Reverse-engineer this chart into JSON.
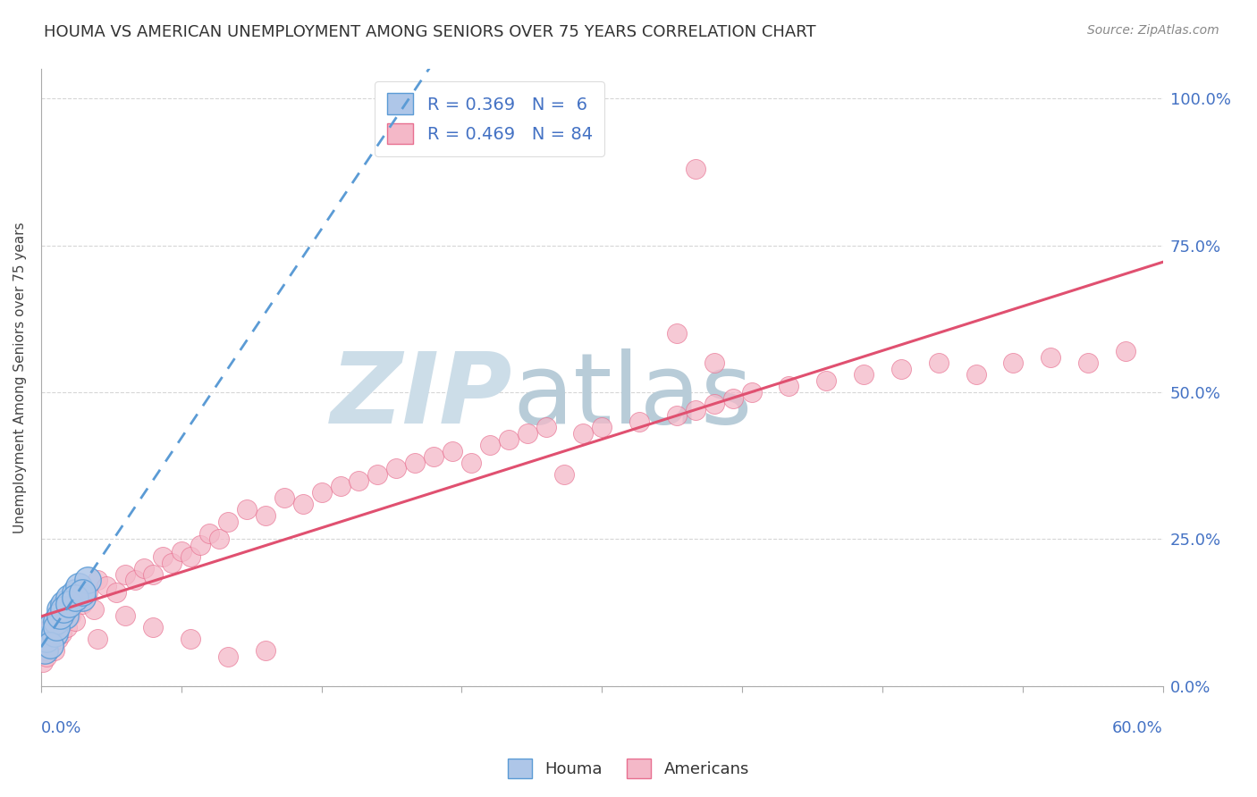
{
  "title": "HOUMA VS AMERICAN UNEMPLOYMENT AMONG SENIORS OVER 75 YEARS CORRELATION CHART",
  "source": "Source: ZipAtlas.com",
  "ylabel": "Unemployment Among Seniors over 75 years",
  "houma_color": "#aec6e8",
  "houma_edge_color": "#5b9bd5",
  "american_color": "#f4b8c8",
  "american_edge_color": "#e87090",
  "american_line_color": "#e05070",
  "houma_line_color": "#5b9bd5",
  "background_color": "#ffffff",
  "xlim": [
    0.0,
    0.6
  ],
  "ylim": [
    0.0,
    1.05
  ],
  "y_tick_vals": [
    0.0,
    0.25,
    0.5,
    0.75,
    1.0
  ],
  "y_tick_labels": [
    "0.0%",
    "25.0%",
    "50.0%",
    "75.0%",
    "100.0%"
  ],
  "houma_x": [
    0.002,
    0.003,
    0.005,
    0.007,
    0.008,
    0.01,
    0.012,
    0.013,
    0.015,
    0.018,
    0.02,
    0.022,
    0.025,
    0.005,
    0.008,
    0.01,
    0.012,
    0.015,
    0.018,
    0.022
  ],
  "houma_y": [
    0.06,
    0.08,
    0.1,
    0.09,
    0.11,
    0.13,
    0.14,
    0.12,
    0.15,
    0.16,
    0.17,
    0.15,
    0.18,
    0.07,
    0.1,
    0.12,
    0.13,
    0.14,
    0.15,
    0.16
  ],
  "american_x": [
    0.001,
    0.002,
    0.003,
    0.004,
    0.005,
    0.005,
    0.006,
    0.007,
    0.008,
    0.009,
    0.01,
    0.01,
    0.011,
    0.012,
    0.013,
    0.014,
    0.015,
    0.016,
    0.017,
    0.018,
    0.02,
    0.022,
    0.025,
    0.028,
    0.03,
    0.035,
    0.04,
    0.045,
    0.05,
    0.055,
    0.06,
    0.065,
    0.07,
    0.075,
    0.08,
    0.085,
    0.09,
    0.095,
    0.1,
    0.11,
    0.12,
    0.13,
    0.14,
    0.15,
    0.16,
    0.17,
    0.18,
    0.19,
    0.2,
    0.21,
    0.22,
    0.23,
    0.24,
    0.25,
    0.26,
    0.27,
    0.28,
    0.29,
    0.3,
    0.32,
    0.34,
    0.35,
    0.36,
    0.37,
    0.38,
    0.4,
    0.42,
    0.44,
    0.46,
    0.48,
    0.5,
    0.52,
    0.54,
    0.56,
    0.58,
    0.34,
    0.36,
    0.03,
    0.045,
    0.06,
    0.08,
    0.1,
    0.12,
    0.35
  ],
  "american_y": [
    0.04,
    0.06,
    0.05,
    0.08,
    0.07,
    0.1,
    0.09,
    0.06,
    0.11,
    0.08,
    0.1,
    0.13,
    0.09,
    0.12,
    0.11,
    0.1,
    0.13,
    0.12,
    0.14,
    0.11,
    0.15,
    0.14,
    0.16,
    0.13,
    0.18,
    0.17,
    0.16,
    0.19,
    0.18,
    0.2,
    0.19,
    0.22,
    0.21,
    0.23,
    0.22,
    0.24,
    0.26,
    0.25,
    0.28,
    0.3,
    0.29,
    0.32,
    0.31,
    0.33,
    0.34,
    0.35,
    0.36,
    0.37,
    0.38,
    0.39,
    0.4,
    0.38,
    0.41,
    0.42,
    0.43,
    0.44,
    0.36,
    0.43,
    0.44,
    0.45,
    0.46,
    0.47,
    0.48,
    0.49,
    0.5,
    0.51,
    0.52,
    0.53,
    0.54,
    0.55,
    0.53,
    0.55,
    0.56,
    0.55,
    0.57,
    0.6,
    0.55,
    0.08,
    0.12,
    0.1,
    0.08,
    0.05,
    0.06,
    0.88
  ],
  "watermark_zip_color": "#ccdde8",
  "watermark_atlas_color": "#b8ccd8"
}
